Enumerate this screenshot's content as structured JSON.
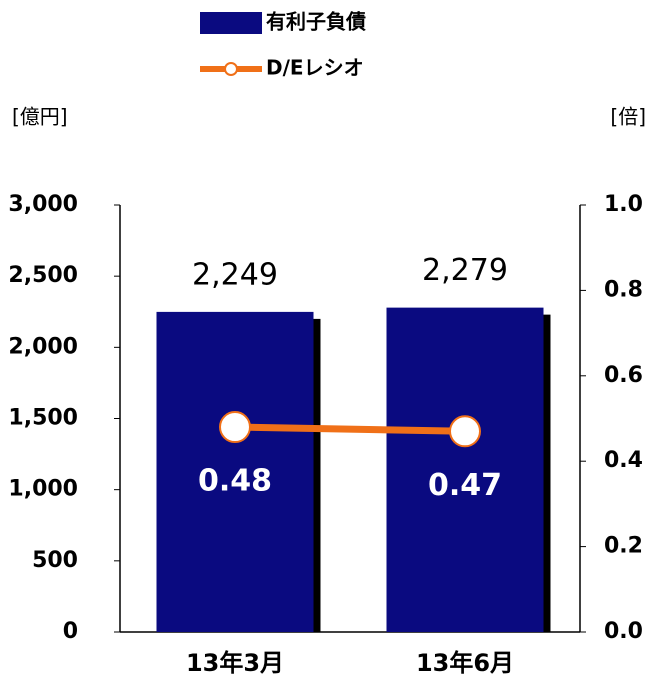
{
  "chart_data": {
    "type": "bar",
    "y_label": "[億円]",
    "y2_label": "[倍]",
    "categories": [
      "13年3月",
      "13年6月"
    ],
    "series": [
      {
        "name": "有利子負債",
        "type": "bar",
        "color": "#0a0a80",
        "values": [
          2249,
          2279
        ],
        "value_labels": [
          "2,249",
          "2,279"
        ]
      },
      {
        "name": "D/Eレシオ",
        "type": "line",
        "axis": "y2",
        "color": "#f07018",
        "values": [
          0.48,
          0.47
        ]
      }
    ],
    "ylim": [
      0,
      3000
    ],
    "yticks": [
      0,
      500,
      {
        "value": 1000,
        "label": "1,000"
      },
      {
        "value": 1500,
        "label": "1,500"
      },
      {
        "value": 2000,
        "label": "2,000"
      },
      {
        "value": 2500,
        "label": "2,500"
      },
      {
        "value": 3000,
        "label": "3,000"
      }
    ],
    "y2lim": [
      0,
      1
    ],
    "y2ticks": [
      {
        "value": 0,
        "label": "0.0"
      },
      0.2,
      0.4,
      0.6,
      0.8,
      {
        "value": 1,
        "label": "1.0"
      }
    ],
    "grid": false
  }
}
